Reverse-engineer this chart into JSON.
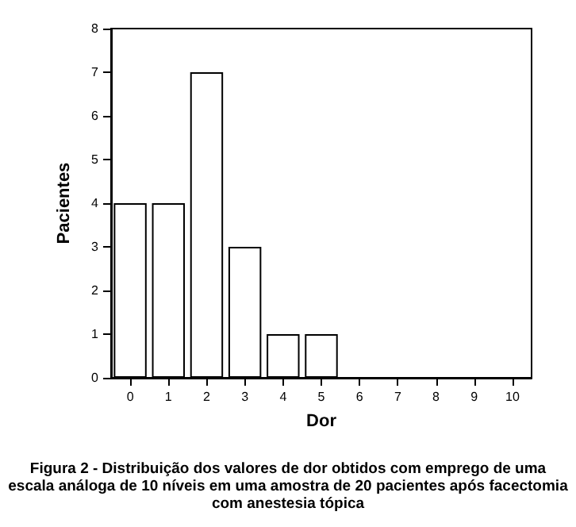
{
  "chart_data": {
    "type": "bar",
    "xlabel": "Dor",
    "ylabel": "Pacientes",
    "categories": [
      "0",
      "1",
      "2",
      "3",
      "4",
      "5",
      "6",
      "7",
      "8",
      "9",
      "10"
    ],
    "values": [
      4,
      4,
      7,
      3,
      1,
      1,
      0,
      0,
      0,
      0,
      0
    ],
    "color": "#ffffff",
    "ylim": [
      0,
      8
    ],
    "yticks": [
      0,
      1,
      2,
      3,
      4,
      5,
      6,
      7,
      8
    ],
    "grid": false,
    "annotations": [
      "Figura 2 - Distribuição dos valores de dor obtidos com emprego de uma escala análoga de 10 níveis em uma amostra de 20 pacientes após facectomia com anestesia tópica"
    ]
  }
}
